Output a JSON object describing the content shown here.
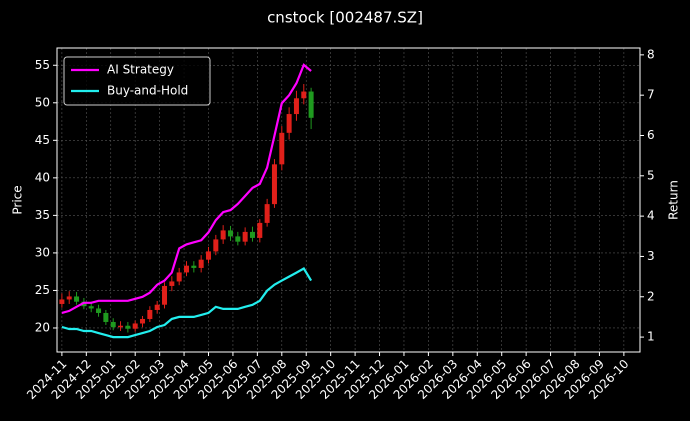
{
  "chart_data": {
    "type": "candlestick",
    "title": "cnstock [002487.SZ]",
    "ylabel": "Price",
    "y2label": "Return",
    "x": [
      0.0,
      0.3,
      0.6,
      0.9,
      1.2,
      1.5,
      1.8,
      2.1,
      2.4,
      2.7,
      3.0,
      3.3,
      3.6,
      3.9,
      4.2,
      4.5,
      4.8,
      5.1,
      5.4,
      5.7,
      6.0,
      6.3,
      6.6,
      6.9,
      7.2,
      7.5,
      7.8,
      8.1,
      8.4,
      8.7,
      9.0,
      9.3,
      9.6,
      9.9,
      10.2
    ],
    "open": [
      23.2,
      23.8,
      24.2,
      23.5,
      22.9,
      22.6,
      22.0,
      20.8,
      20.1,
      20.3,
      19.9,
      20.6,
      21.2,
      22.4,
      23.1,
      25.6,
      26.2,
      27.4,
      28.3,
      28.0,
      29.1,
      30.2,
      31.8,
      33.0,
      32.2,
      31.5,
      32.8,
      32.0,
      34.0,
      36.5,
      41.8,
      46.0,
      48.5,
      50.6,
      51.5
    ],
    "high": [
      24.6,
      24.9,
      24.8,
      24.0,
      23.5,
      23.1,
      22.4,
      21.3,
      20.9,
      20.8,
      21.0,
      21.6,
      22.9,
      23.6,
      26.1,
      26.9,
      28.0,
      28.9,
      28.9,
      29.7,
      30.8,
      32.4,
      33.7,
      33.6,
      32.8,
      33.4,
      33.5,
      34.5,
      37.2,
      42.5,
      46.9,
      49.4,
      51.6,
      52.5,
      52.0
    ],
    "low": [
      22.7,
      23.2,
      23.1,
      22.5,
      22.1,
      21.5,
      20.4,
      19.7,
      19.6,
      19.4,
      19.5,
      20.1,
      20.8,
      21.9,
      22.6,
      24.9,
      25.7,
      26.9,
      27.4,
      27.4,
      28.6,
      29.7,
      31.2,
      31.6,
      31.0,
      31.0,
      31.5,
      31.4,
      33.5,
      36.0,
      41.0,
      45.1,
      47.6,
      49.8,
      46.5
    ],
    "close": [
      23.8,
      24.2,
      23.5,
      22.9,
      22.6,
      22.0,
      20.8,
      20.1,
      20.3,
      19.9,
      20.6,
      21.2,
      22.4,
      23.1,
      25.6,
      26.2,
      27.4,
      28.3,
      28.0,
      29.1,
      30.2,
      31.8,
      33.0,
      32.2,
      31.5,
      32.8,
      32.0,
      34.0,
      36.5,
      41.8,
      46.0,
      48.5,
      50.6,
      51.5,
      48.0
    ],
    "up_color": "#e0201a",
    "down_color": "#1f9a1f",
    "series": [
      {
        "name": "AI Strategy",
        "color": "#ff00ff",
        "axis": "y2",
        "values": [
          1.6,
          1.65,
          1.75,
          1.85,
          1.85,
          1.9,
          1.9,
          1.9,
          1.9,
          1.9,
          1.95,
          2.0,
          2.1,
          2.3,
          2.4,
          2.6,
          3.2,
          3.3,
          3.35,
          3.4,
          3.6,
          3.9,
          4.1,
          4.15,
          4.3,
          4.5,
          4.7,
          4.8,
          5.2,
          6.0,
          6.8,
          7.0,
          7.3,
          7.75,
          7.6
        ]
      },
      {
        "name": "Buy-and-Hold",
        "color": "#22eeee",
        "axis": "y2",
        "values": [
          1.25,
          1.2,
          1.2,
          1.15,
          1.15,
          1.1,
          1.05,
          1.0,
          1.0,
          1.0,
          1.05,
          1.1,
          1.15,
          1.25,
          1.3,
          1.45,
          1.5,
          1.5,
          1.5,
          1.55,
          1.6,
          1.75,
          1.7,
          1.7,
          1.7,
          1.75,
          1.8,
          1.9,
          2.15,
          2.3,
          2.4,
          2.5,
          2.6,
          2.7,
          2.4
        ]
      }
    ],
    "xlim": [
      -0.2,
      23.66
    ],
    "xticks": [
      {
        "value": 0,
        "label": "2024-11"
      },
      {
        "value": 1,
        "label": "2024-12"
      },
      {
        "value": 2,
        "label": "2025-01"
      },
      {
        "value": 3,
        "label": "2025-02"
      },
      {
        "value": 4,
        "label": "2025-03"
      },
      {
        "value": 5,
        "label": "2025-04"
      },
      {
        "value": 6,
        "label": "2025-05"
      },
      {
        "value": 7,
        "label": "2025-06"
      },
      {
        "value": 8,
        "label": "2025-07"
      },
      {
        "value": 9,
        "label": "2025-08"
      },
      {
        "value": 10,
        "label": "2025-09"
      },
      {
        "value": 11,
        "label": "2025-10"
      },
      {
        "value": 12,
        "label": "2025-11"
      },
      {
        "value": 13,
        "label": "2025-12"
      },
      {
        "value": 14,
        "label": "2026-01"
      },
      {
        "value": 15,
        "label": "2026-02"
      },
      {
        "value": 16,
        "label": "2026-03"
      },
      {
        "value": 17,
        "label": "2026-04"
      },
      {
        "value": 18,
        "label": "2026-05"
      },
      {
        "value": 19,
        "label": "2026-06"
      },
      {
        "value": 20,
        "label": "2026-07"
      },
      {
        "value": 21,
        "label": "2026-08"
      },
      {
        "value": 22,
        "label": "2026-09"
      },
      {
        "value": 23,
        "label": "2026-10"
      }
    ],
    "ylim": [
      16.8,
      57.3
    ],
    "yticks": [
      20,
      25,
      30,
      35,
      40,
      45,
      50,
      55
    ],
    "y2lim": [
      0.63,
      8.17
    ],
    "y2ticks": [
      1,
      2,
      3,
      4,
      5,
      6,
      7,
      8
    ],
    "grid": true,
    "legend": "upper left"
  }
}
